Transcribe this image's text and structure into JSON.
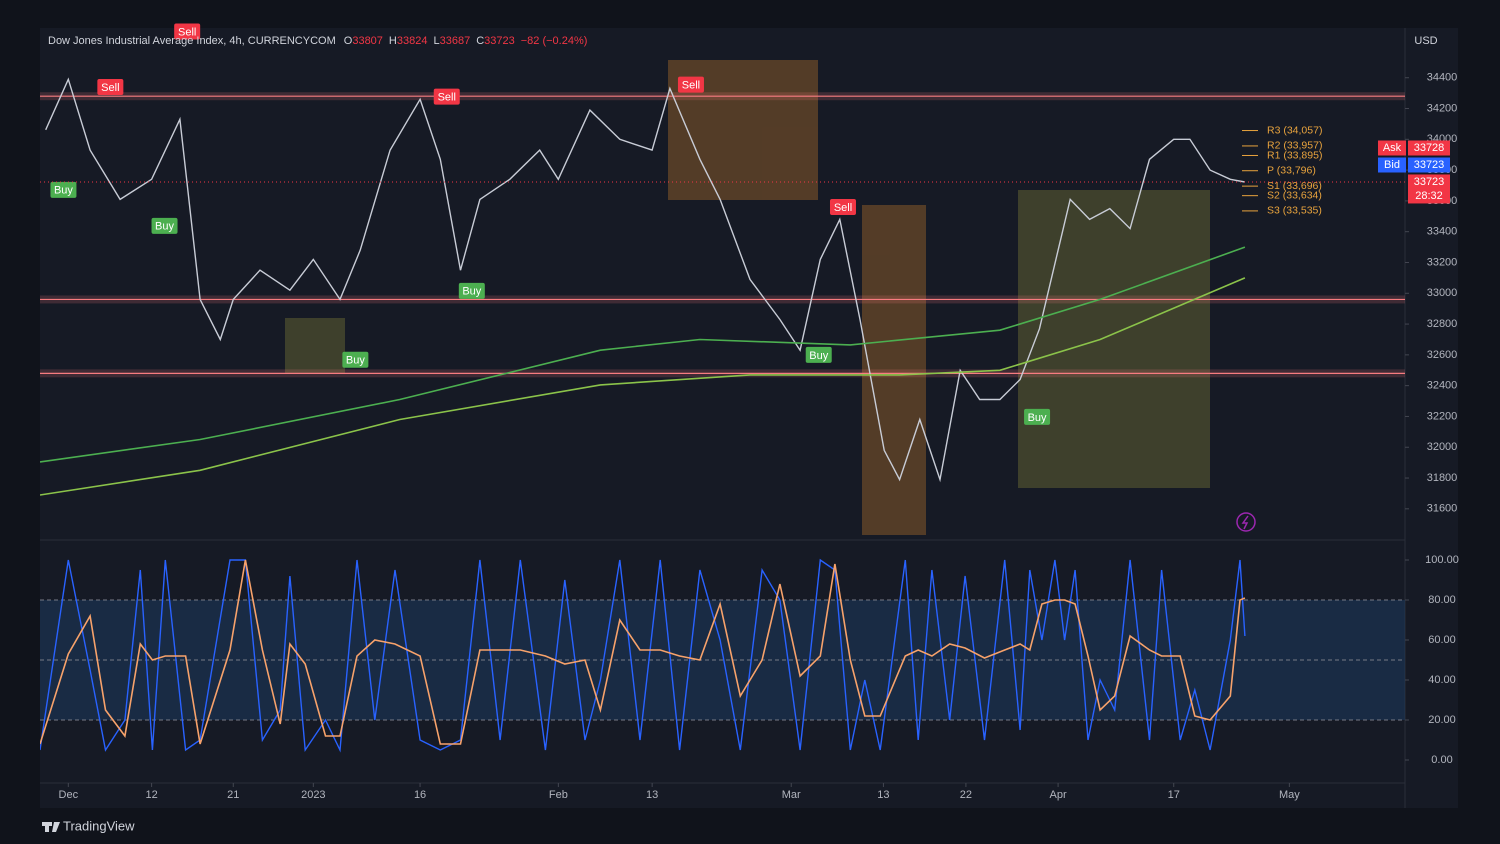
{
  "chart_data": [
    {
      "type": "line",
      "title": "Dow Jones Industrial Average Index, 4h, CURRENCYCOM",
      "ohlc": [
        {
          "label": "O",
          "value": 33807
        },
        {
          "label": "H",
          "value": 33824
        },
        {
          "label": "L",
          "value": 33687
        },
        {
          "label": "C",
          "value": 33723
        }
      ],
      "change": "−82 (−0.24%)",
      "currency": "USD",
      "xlim": [
        -3.5,
        165.3
      ],
      "ylim": [
        31430,
        34710
      ],
      "yticks": [
        31600,
        31800,
        32000,
        32200,
        32400,
        32600,
        32800,
        33000,
        33200,
        33400,
        33600,
        33800,
        34000,
        34200,
        34400
      ],
      "series": [
        {
          "color": "#c8ccd6",
          "x": [
            -2.8,
            0,
            2.7,
            6.4,
            10.3,
            13.8,
            16.3,
            18.8,
            20.4,
            23.7,
            27.4,
            30.3,
            33.6,
            36.1,
            39.8,
            43.5,
            46,
            48.5,
            50.9,
            54.6,
            58.3,
            60.6,
            64.5,
            68.2,
            72.2,
            74.4,
            78.1,
            80.6,
            84.3,
            88,
            90.5,
            93,
            95.4,
            97.9,
            100.9,
            102.8,
            105.3,
            107.8,
            110.3,
            112.7,
            115.2,
            117.7,
            120.1,
            122.4,
            123.9,
            126.3,
            128.8,
            131.3,
            133.7,
            136.7,
            138.7,
            141.2,
            143.7,
            145.5
          ],
          "values": [
            34062,
            34390,
            33930,
            33610,
            33740,
            34130,
            32960,
            32700,
            32960,
            33150,
            33020,
            33220,
            32960,
            33280,
            33930,
            34260,
            33870,
            33150,
            33610,
            33740,
            33930,
            33740,
            34190,
            34000,
            33930,
            34330,
            33870,
            33610,
            33090,
            32830,
            32630,
            33220,
            33480,
            32830,
            31980,
            31790,
            32180,
            31790,
            32500,
            32310,
            32310,
            32440,
            32770,
            33280,
            33610,
            33480,
            33550,
            33420,
            33870,
            34000,
            34000,
            33800,
            33740,
            33723
          ]
        },
        {
          "color": "#4caf50",
          "x": [
            -3.5,
            16.3,
            41,
            65.8,
            78.1,
            96.7,
            115.2,
            127.6,
            145.5
          ],
          "values": [
            31905,
            32050,
            32310,
            32630,
            32700,
            32665,
            32760,
            32960,
            33300
          ]
        },
        {
          "color": "#8bc34a",
          "x": [
            -3.5,
            16.3,
            41,
            65.8,
            84.3,
            102.8,
            115.2,
            127.6,
            145.5
          ],
          "values": [
            31690,
            31850,
            32180,
            32405,
            32470,
            32470,
            32500,
            32700,
            33100
          ]
        }
      ],
      "levels": [
        34280,
        32960,
        32480
      ],
      "pivots": [
        {
          "label": "R3 (34,057)",
          "value": 34057
        },
        {
          "label": "R2 (33,957)",
          "value": 33957
        },
        {
          "label": "R1 (33,895)",
          "value": 33895
        },
        {
          "label": "P (33,796)",
          "value": 33796
        },
        {
          "label": "S1 (33,696)",
          "value": 33696
        },
        {
          "label": "S2 (33,634)",
          "value": 33634
        },
        {
          "label": "S3 (33,535)",
          "value": 33535
        }
      ],
      "signals": [
        {
          "label": "Sell",
          "x": 5.2,
          "value": 34340
        },
        {
          "label": "Sell",
          "x": 14.7,
          "value": 34700
        },
        {
          "label": "Sell",
          "x": 46.8,
          "value": 34277
        },
        {
          "label": "Sell",
          "x": 77,
          "value": 34355
        },
        {
          "label": "Sell",
          "x": 95.8,
          "value": 33560
        },
        {
          "label": "Buy",
          "x": -0.6,
          "value": 33672
        },
        {
          "label": "Buy",
          "x": 11.9,
          "value": 33438
        },
        {
          "label": "Buy",
          "x": 35.5,
          "value": 32568
        },
        {
          "label": "Buy",
          "x": 49.9,
          "value": 33016
        },
        {
          "label": "Buy",
          "x": 92.8,
          "value": 32600
        },
        {
          "label": "Buy",
          "x": 119.8,
          "value": 32197
        }
      ],
      "price_tags": [
        {
          "label": "Ask",
          "value": 33728,
          "color": "#f23645"
        },
        {
          "label": "Bid",
          "value": 33723,
          "color": "#2962ff"
        }
      ],
      "last_price": 33723,
      "countdown": "28:32"
    },
    {
      "type": "line",
      "xlim": [
        -3.5,
        165.3
      ],
      "xticks": [
        {
          "value": 0,
          "label": "Dec"
        },
        {
          "value": 10.3,
          "label": "12"
        },
        {
          "value": 20.4,
          "label": "21"
        },
        {
          "value": 30.3,
          "label": "2023"
        },
        {
          "value": 43.5,
          "label": "16"
        },
        {
          "value": 60.6,
          "label": "Feb"
        },
        {
          "value": 72.2,
          "label": "13"
        },
        {
          "value": 89.4,
          "label": "Mar"
        },
        {
          "value": 100.8,
          "label": "13"
        },
        {
          "value": 111,
          "label": "22"
        },
        {
          "value": 122.4,
          "label": "Apr"
        },
        {
          "value": 136.7,
          "label": "17"
        },
        {
          "value": 151,
          "label": "May"
        }
      ],
      "ylim": [
        -11.5,
        107.5
      ],
      "yticks": [
        {
          "value": 0,
          "label": "0.00"
        },
        {
          "value": 20,
          "label": "20.00"
        },
        {
          "value": 40,
          "label": "40.00"
        },
        {
          "value": 60,
          "label": "60.00"
        },
        {
          "value": 80,
          "label": "80.00"
        },
        {
          "value": 100,
          "label": "100.00"
        }
      ],
      "hlines": [
        80,
        50,
        20
      ],
      "fill_range": [
        20,
        80
      ],
      "series": [
        {
          "color": "#2962ff",
          "x": [
            -3.5,
            0,
            2.7,
            4.6,
            7,
            8.9,
            10.4,
            12,
            14.5,
            16.3,
            20,
            21.9,
            24,
            26.2,
            27.4,
            29.3,
            31.8,
            33.6,
            35.7,
            37.9,
            40.4,
            43.5,
            46,
            48.5,
            50.9,
            53.4,
            55.9,
            59,
            61.4,
            63.9,
            65.8,
            68.2,
            70.7,
            73.2,
            75.6,
            78.1,
            80.6,
            83.1,
            85.8,
            88,
            90.5,
            93,
            94.8,
            96.7,
            98.5,
            100.4,
            103.5,
            105.1,
            106.8,
            109,
            110.9,
            113.3,
            115.8,
            117.7,
            118.9,
            120.4,
            122,
            123.2,
            124.5,
            126.1,
            127.6,
            129.4,
            131.3,
            133.7,
            135.2,
            137.5,
            139.3,
            141.2,
            143.7,
            144.9,
            145.5
          ],
          "values": [
            5,
            100,
            45,
            5,
            20,
            95,
            5,
            100,
            5,
            10,
            100,
            100,
            10,
            25,
            92,
            5,
            20,
            5,
            100,
            20,
            95,
            10,
            5,
            10,
            100,
            10,
            100,
            5,
            90,
            10,
            40,
            100,
            10,
            100,
            5,
            95,
            60,
            5,
            95,
            80,
            5,
            100,
            95,
            5,
            40,
            5,
            100,
            10,
            95,
            20,
            92,
            10,
            100,
            15,
            95,
            60,
            100,
            60,
            95,
            10,
            40,
            25,
            100,
            10,
            95,
            10,
            35,
            5,
            60,
            100,
            62
          ]
        },
        {
          "color": "#f7a26b",
          "x": [
            -3.5,
            0,
            2.7,
            4.6,
            7,
            8.9,
            10.4,
            12,
            14.5,
            16.3,
            20,
            21.9,
            24,
            26.2,
            27.4,
            29.3,
            31.8,
            33.6,
            35.7,
            37.9,
            40.4,
            43.5,
            46,
            48.5,
            50.9,
            53.4,
            55.9,
            59,
            61.4,
            63.9,
            65.8,
            68.2,
            70.7,
            73.2,
            75.6,
            78.1,
            80.6,
            83.1,
            85.8,
            88,
            90.5,
            93,
            94.8,
            96.7,
            98.5,
            100.4,
            103.5,
            105.1,
            106.8,
            109,
            110.9,
            113.3,
            115.8,
            117.7,
            118.9,
            120.4,
            122,
            123.2,
            124.5,
            126.1,
            127.6,
            129.4,
            131.3,
            133.7,
            135.2,
            137.5,
            139.3,
            141.2,
            143.7,
            144.9,
            145.5
          ],
          "values": [
            8,
            53,
            72,
            25,
            12,
            58,
            50,
            52,
            52,
            8,
            55,
            100,
            55,
            18,
            58,
            48,
            12,
            12,
            52,
            60,
            58,
            52,
            8,
            8,
            55,
            55,
            55,
            52,
            48,
            50,
            25,
            70,
            55,
            55,
            52,
            50,
            78,
            32,
            50,
            88,
            42,
            52,
            98,
            50,
            22,
            22,
            52,
            55,
            52,
            58,
            56,
            51,
            55,
            58,
            55,
            78,
            80,
            80,
            78,
            52,
            25,
            32,
            62,
            55,
            52,
            52,
            22,
            20,
            32,
            80,
            81
          ]
        }
      ]
    }
  ],
  "footer": "TradingView"
}
